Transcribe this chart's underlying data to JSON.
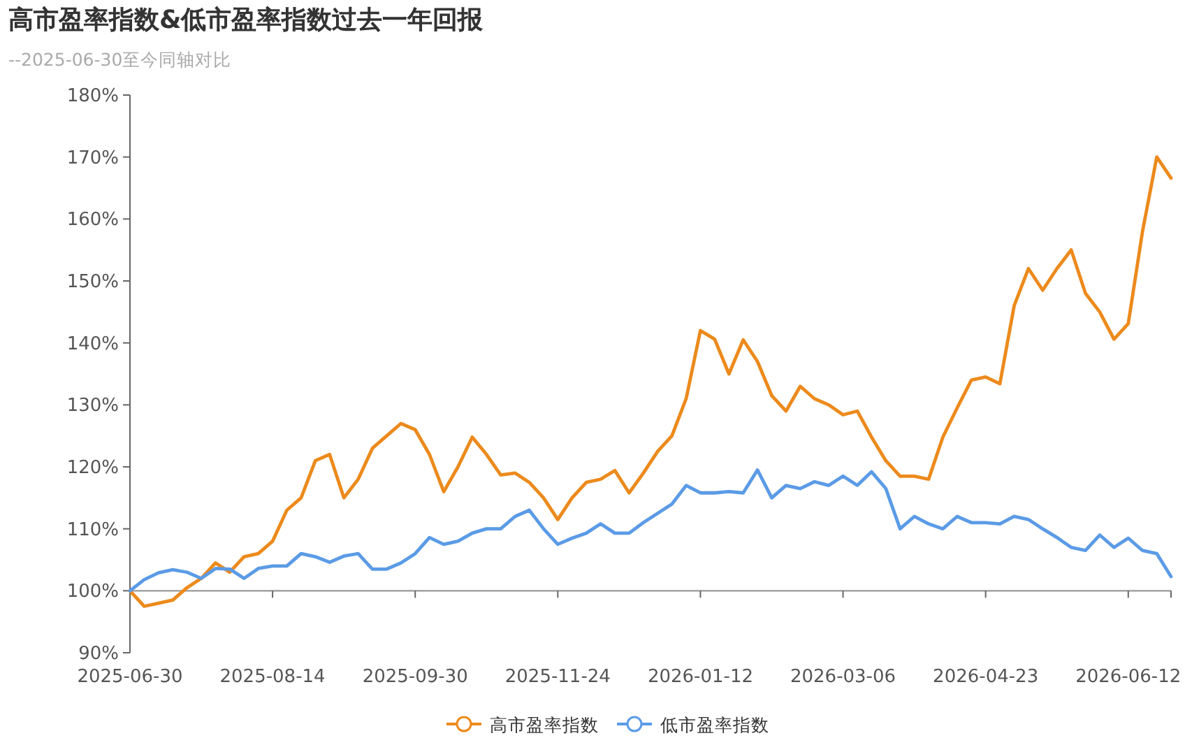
{
  "chart_data": {
    "type": "line",
    "title": "高市盈率指数&低市盈率指数过去一年回报",
    "subtitle": "--2025-06-30至今同轴对比",
    "categories": [
      "2025-06-30",
      null,
      null,
      null,
      null,
      null,
      null,
      null,
      null,
      null,
      "2025-08-14",
      null,
      null,
      null,
      null,
      null,
      null,
      null,
      null,
      null,
      "2025-09-30",
      null,
      null,
      null,
      null,
      null,
      null,
      null,
      null,
      null,
      "2025-11-24",
      null,
      null,
      null,
      null,
      null,
      null,
      null,
      null,
      null,
      "2026-01-12",
      null,
      null,
      null,
      null,
      null,
      null,
      null,
      null,
      null,
      "2026-03-06",
      null,
      null,
      null,
      null,
      null,
      null,
      null,
      null,
      null,
      "2026-04-23",
      null,
      null,
      null,
      null,
      null,
      null,
      null,
      null,
      null,
      "2026-06-12",
      null,
      null,
      null
    ],
    "series": [
      {
        "name": "高市盈率指数",
        "color": "#ec8a1c",
        "values": [
          100,
          97.5,
          98,
          98.5,
          100.5,
          102,
          104.5,
          103,
          105.5,
          106,
          108,
          113,
          115,
          121,
          122,
          115,
          118,
          123,
          125,
          127,
          126,
          122,
          116,
          120,
          124.8,
          122,
          118.7,
          119,
          117.5,
          115,
          111.5,
          115,
          117.5,
          118,
          119.4,
          115.8,
          119,
          122.5,
          125,
          131,
          142,
          140.6,
          135,
          140.5,
          137,
          131.5,
          129,
          133,
          131,
          130,
          128.4,
          129,
          124.8,
          121,
          118.5,
          118.5,
          118,
          124.8,
          129.5,
          134,
          134.5,
          133.4,
          146,
          152,
          148.5,
          152,
          155,
          148,
          145,
          140.6,
          143.1,
          158,
          170,
          166.6
        ]
      },
      {
        "name": "低市盈率指数",
        "color": "#5b9be6",
        "values": [
          100,
          101.8,
          102.9,
          103.4,
          103,
          102,
          103.6,
          103.5,
          102,
          103.6,
          104,
          104,
          106,
          105.5,
          104.6,
          105.6,
          106,
          103.5,
          103.5,
          104.5,
          106,
          108.6,
          107.5,
          108,
          109.3,
          110,
          110,
          112,
          113,
          110,
          107.5,
          108.5,
          109.3,
          110.8,
          109.3,
          109.3,
          111,
          112.5,
          114,
          117,
          115.8,
          115.8,
          116,
          115.8,
          119.5,
          115,
          117,
          116.5,
          117.6,
          117,
          118.5,
          117,
          119.2,
          116.5,
          110,
          112,
          110.8,
          110,
          112,
          111,
          111,
          110.8,
          112,
          111.5,
          110,
          108.6,
          107,
          106.5,
          109,
          107,
          108.5,
          106.5,
          106,
          102.3
        ]
      }
    ],
    "ylim": [
      90,
      180
    ],
    "yticks": [
      {
        "value": 90,
        "label": "90%"
      },
      {
        "value": 100,
        "label": "100%"
      },
      {
        "value": 110,
        "label": "110%"
      },
      {
        "value": 120,
        "label": "120%"
      },
      {
        "value": 130,
        "label": "130%"
      },
      {
        "value": 140,
        "label": "140%"
      },
      {
        "value": 150,
        "label": "150%"
      },
      {
        "value": 160,
        "label": "160%"
      },
      {
        "value": 170,
        "label": "170%"
      },
      {
        "value": 180,
        "label": "180%"
      }
    ],
    "ref_lines": [
      {
        "axis": "y",
        "value": 100,
        "color": "#999999"
      }
    ],
    "legend": "bottom",
    "marker": "none"
  }
}
